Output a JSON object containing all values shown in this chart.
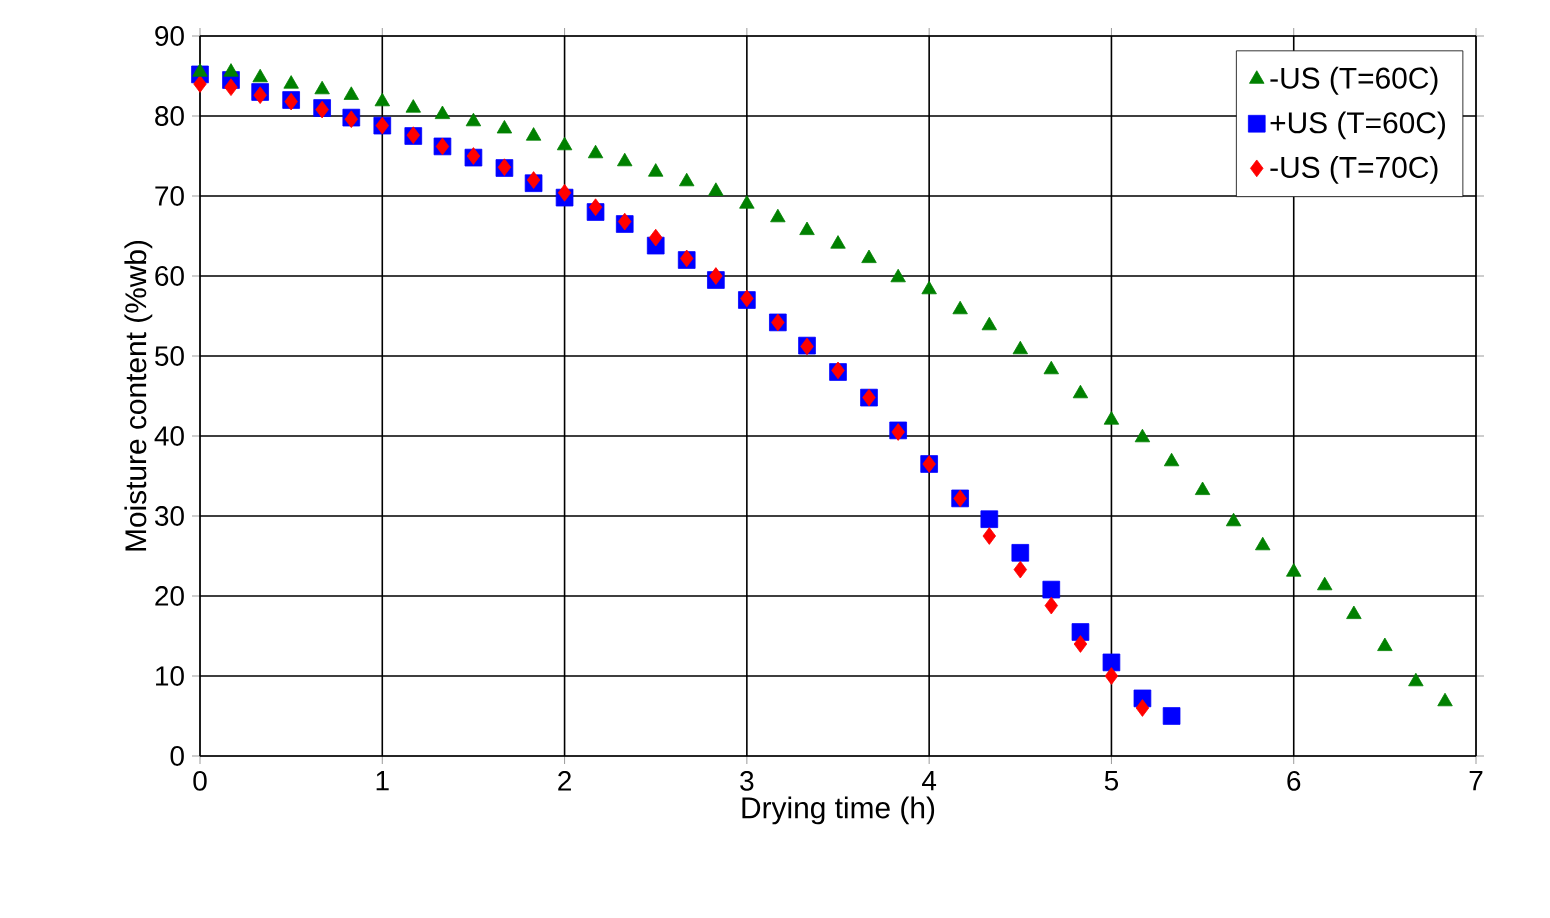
{
  "chart_data": {
    "type": "scatter",
    "xlabel": "Drying time (h)",
    "ylabel": "Moisture content (%wb)",
    "xlim": [
      0,
      7
    ],
    "ylim": [
      0,
      90
    ],
    "xticks": [
      0,
      1,
      2,
      3,
      4,
      5,
      6,
      7
    ],
    "yticks": [
      0,
      10,
      20,
      30,
      40,
      50,
      60,
      70,
      80,
      90
    ],
    "grid": true,
    "legend": "top right",
    "series": [
      {
        "name": "-US (T=60C)",
        "color": "#008000",
        "marker": "triangle",
        "x": [
          0,
          0.17,
          0.33,
          0.5,
          0.67,
          0.83,
          1,
          1.17,
          1.33,
          1.5,
          1.67,
          1.83,
          2,
          2.17,
          2.33,
          2.5,
          2.67,
          2.83,
          3,
          3.17,
          3.33,
          3.5,
          3.67,
          3.83,
          4,
          4.17,
          4.33,
          4.5,
          4.67,
          4.83,
          5,
          5.17,
          5.33,
          5.5,
          5.67,
          5.83,
          6,
          6.17,
          6.33,
          6.5,
          6.67,
          6.83
        ],
        "values": [
          85.5,
          85.5,
          84.8,
          84,
          83.3,
          82.6,
          81.8,
          81,
          80.2,
          79.3,
          78.4,
          77.5,
          76.3,
          75.3,
          74.3,
          73,
          71.8,
          70.6,
          69,
          67.3,
          65.7,
          64,
          62.2,
          59.8,
          58.3,
          55.8,
          53.8,
          50.8,
          48.3,
          45.3,
          42,
          39.8,
          36.8,
          33.2,
          29.3,
          26.3,
          23,
          21.3,
          17.7,
          13.7,
          9.3,
          6.8
        ]
      },
      {
        "name": "+US (T=60C)",
        "color": "#0000ff",
        "marker": "square",
        "x": [
          0,
          0.17,
          0.33,
          0.5,
          0.67,
          0.83,
          1,
          1.17,
          1.33,
          1.5,
          1.67,
          1.83,
          2,
          2.17,
          2.33,
          2.5,
          2.67,
          2.83,
          3,
          3.17,
          3.33,
          3.5,
          3.67,
          3.83,
          4,
          4.17,
          4.33,
          4.5,
          4.67,
          4.83,
          5,
          5.17,
          5.33
        ],
        "values": [
          85.2,
          84.5,
          83,
          82,
          81,
          79.8,
          78.8,
          77.5,
          76.2,
          74.8,
          73.5,
          71.6,
          69.8,
          68,
          66.5,
          63.8,
          62,
          59.5,
          57,
          54.2,
          51.3,
          48,
          44.8,
          40.7,
          36.5,
          32.2,
          29.6,
          25.4,
          20.8,
          15.5,
          11.7,
          7.2,
          5
        ]
      },
      {
        "name": "-US (T=70C)",
        "color": "#ff0000",
        "marker": "diamond",
        "x": [
          0,
          0.17,
          0.33,
          0.5,
          0.67,
          0.83,
          1,
          1.17,
          1.33,
          1.5,
          1.67,
          1.83,
          2,
          2.17,
          2.33,
          2.5,
          2.67,
          2.83,
          3,
          3.17,
          3.33,
          3.5,
          3.67,
          3.83,
          4,
          4.17,
          4.33,
          4.5,
          4.67,
          4.83,
          5,
          5.17
        ],
        "values": [
          84,
          83.6,
          82.6,
          81.8,
          80.8,
          79.6,
          78.8,
          77.6,
          76.2,
          75,
          73.6,
          72,
          70.4,
          68.6,
          66.8,
          64.8,
          62.2,
          60,
          57.2,
          54.2,
          51.2,
          48.2,
          44.8,
          40.5,
          36.5,
          32.2,
          27.5,
          23.3,
          18.8,
          14,
          10,
          6
        ]
      }
    ]
  }
}
